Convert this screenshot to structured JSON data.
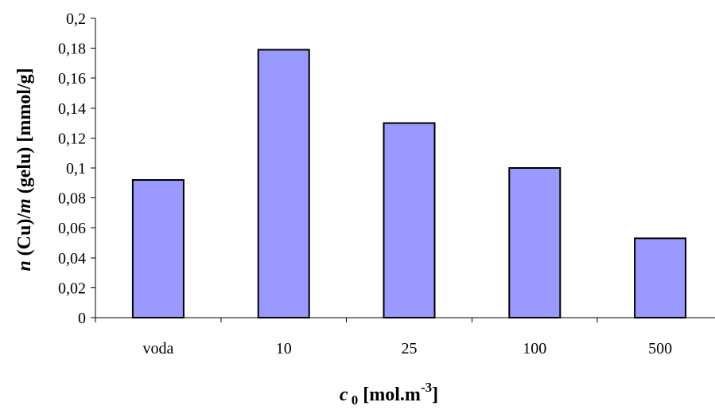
{
  "chart_data": {
    "type": "bar",
    "categories": [
      "voda",
      "10",
      "25",
      "100",
      "500"
    ],
    "values": [
      0.092,
      0.179,
      0.13,
      0.1,
      0.053
    ],
    "ylim": [
      0,
      0.2
    ],
    "yticks": [
      "0",
      "0,02",
      "0,04",
      "0,06",
      "0,08",
      "0,1",
      "0,12",
      "0,14",
      "0,16",
      "0,18",
      "0,2"
    ],
    "ylabel": {
      "part1": "n",
      "part2": " (Cu)/",
      "part3": "m",
      "part4": " (gelu) [mmol/g]"
    },
    "xlabel": {
      "var": "c",
      "sub": " 0",
      "unit": " [mol.m",
      "sup": "-3",
      "close": "]"
    },
    "grid": false,
    "legend": "none",
    "bar_color": "#9999ff",
    "bar_edge_color": "#000000"
  }
}
